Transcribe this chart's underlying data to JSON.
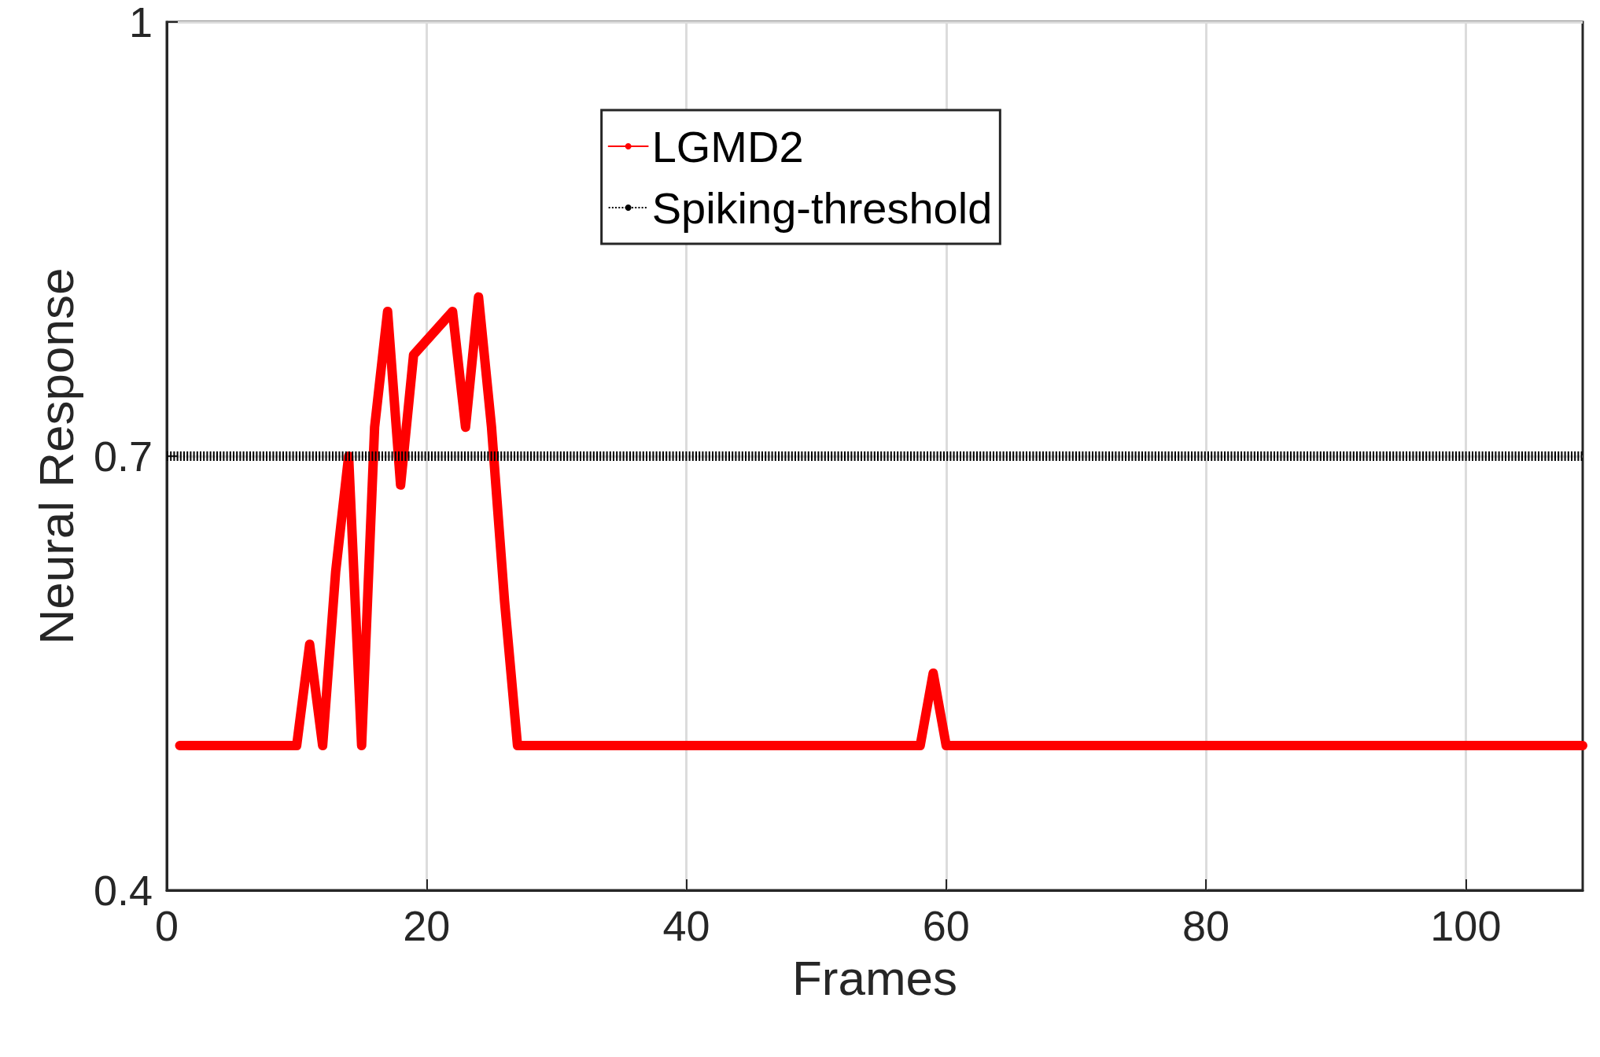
{
  "chart_data": {
    "type": "line",
    "xlabel": "Frames",
    "ylabel": "Neural Response",
    "xlim": [
      0,
      109
    ],
    "xticks": [
      0,
      20,
      40,
      60,
      80,
      100
    ],
    "ylim": [
      0.4,
      1
    ],
    "yticks": [
      0.4,
      0.7,
      1
    ],
    "grid": true,
    "legend": "top",
    "marker": "none",
    "series": [
      {
        "name": "LGMD2",
        "color": "#ff0000",
        "line_style": "solid",
        "x": [
          1,
          10,
          11,
          12,
          13,
          14,
          15,
          16,
          17,
          18,
          19,
          22,
          23,
          24,
          25,
          26,
          27,
          58,
          59,
          60,
          109
        ],
        "values": [
          0.5,
          0.5,
          0.57,
          0.5,
          0.62,
          0.7,
          0.5,
          0.72,
          0.8,
          0.68,
          0.77,
          0.8,
          0.72,
          0.81,
          0.72,
          0.6,
          0.5,
          0.5,
          0.55,
          0.5,
          0.5
        ]
      },
      {
        "name": "Spiking-threshold",
        "color": "#000000",
        "line_style": "dotted",
        "x": [
          0,
          109
        ],
        "values": [
          0.7,
          0.7
        ]
      }
    ]
  }
}
